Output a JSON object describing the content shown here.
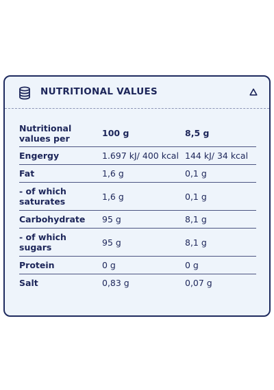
{
  "header": {
    "title": "NUTRITIONAL VALUES"
  },
  "table": {
    "columns": [
      "Nutritional values per",
      "100 g",
      "8,5 g"
    ],
    "rows": [
      [
        "Engergy",
        "1.697 kJ/ 400 kcal",
        "144 kJ/ 34 kcal"
      ],
      [
        "Fat",
        "1,6 g",
        "0,1 g"
      ],
      [
        "- of which saturates",
        "1,6 g",
        "0,1 g"
      ],
      [
        "Carbohydrate",
        "95 g",
        "8,1 g"
      ],
      [
        "- of which sugars",
        "95 g",
        "8,1 g"
      ],
      [
        "Protein",
        "0 g",
        "0 g"
      ],
      [
        "Salt",
        "0,83 g",
        "0,07 g"
      ]
    ]
  }
}
